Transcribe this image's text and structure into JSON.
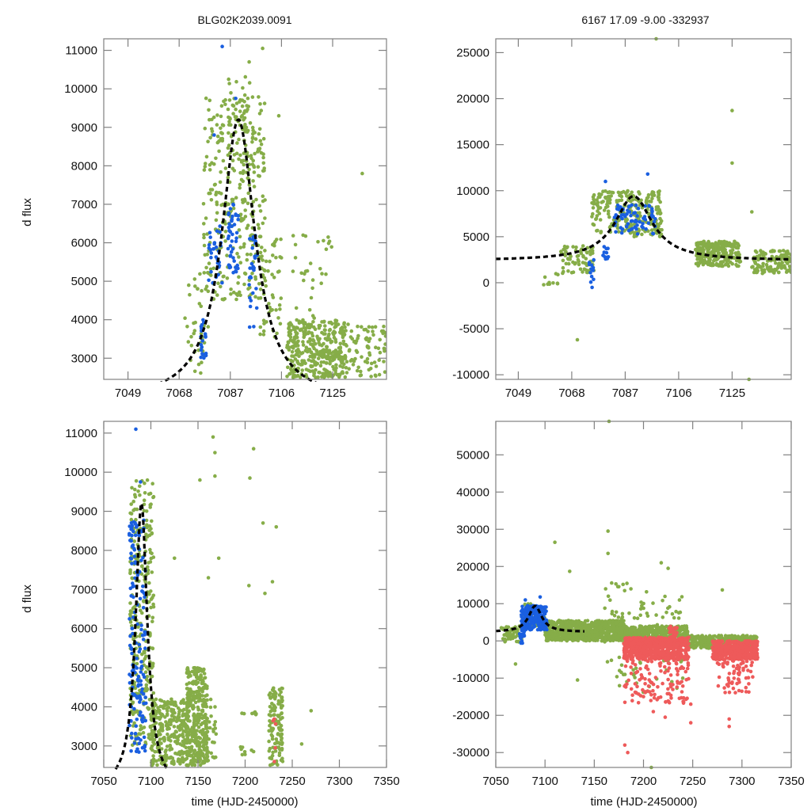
{
  "colors": {
    "green": "#86ad48",
    "blue": "#1a5fe0",
    "red": "#ee5a5a",
    "model": "#000000",
    "frame": "#808080"
  },
  "chart_data": [
    {
      "type": "scatter",
      "panel": "top-left",
      "title": "BLG02K2039.0091",
      "xlabel": "",
      "ylabel": "d flux",
      "xlim": [
        7040,
        7145
      ],
      "ylim": [
        2450,
        11300
      ],
      "xticks": [
        "7049",
        "7068",
        "7087",
        "7106",
        "7125"
      ],
      "xtick_values": [
        7049,
        7068,
        7087,
        7106,
        7125
      ],
      "yticks": [
        "3000",
        "4000",
        "5000",
        "6000",
        "7000",
        "8000",
        "9000",
        "10000",
        "11000"
      ],
      "ytick_values": [
        3000,
        4000,
        5000,
        6000,
        7000,
        8000,
        9000,
        10000,
        11000
      ],
      "grid": false,
      "model": {
        "type": "lorentzian",
        "t0": 7090,
        "width": 7.5,
        "amplitude": 7300,
        "baseline": 1900
      },
      "series": [
        {
          "name": "green",
          "color": "green",
          "clusters": [
            {
              "x": [
                7070,
                7079
              ],
              "y": [
                2600,
                5200
              ],
              "n": 40
            },
            {
              "x": [
                7077,
                7100
              ],
              "y": [
                4500,
                9800
              ],
              "n": 320
            },
            {
              "x": [
                7086,
                7097
              ],
              "y": [
                7500,
                10500
              ],
              "n": 50
            },
            {
              "x": [
                7098,
                7106
              ],
              "y": [
                3500,
                6200
              ],
              "n": 50
            },
            {
              "x": [
                7108,
                7130
              ],
              "y": [
                2500,
                4000
              ],
              "n": 380
            },
            {
              "x": [
                7130,
                7145
              ],
              "y": [
                2500,
                3900
              ],
              "n": 80
            },
            {
              "x": [
                7110,
                7125
              ],
              "y": [
                4000,
                6500
              ],
              "n": 30
            }
          ],
          "points": [
            {
              "x": 7099,
              "y": 11050
            },
            {
              "x": 7105,
              "y": 9300
            },
            {
              "x": 7136,
              "y": 7800
            },
            {
              "x": 7094,
              "y": 10700
            }
          ]
        },
        {
          "name": "blue",
          "color": "blue",
          "clusters": [
            {
              "x": [
                7076,
                7078
              ],
              "y": [
                2800,
                4000
              ],
              "n": 20
            },
            {
              "x": [
                7079,
                7084
              ],
              "y": [
                4800,
                6500
              ],
              "n": 30
            },
            {
              "x": [
                7086,
                7090
              ],
              "y": [
                5200,
                7000
              ],
              "n": 45
            },
            {
              "x": [
                7094,
                7097
              ],
              "y": [
                3800,
                6200
              ],
              "n": 30
            }
          ],
          "points": [
            {
              "x": 7084,
              "y": 11100
            },
            {
              "x": 7089,
              "y": 9750
            },
            {
              "x": 7081,
              "y": 8800
            }
          ]
        }
      ]
    },
    {
      "type": "scatter",
      "panel": "top-right",
      "title": "6167  17.09  -9.00  -332937",
      "xlabel": "",
      "ylabel": "",
      "xlim": [
        7041,
        7146
      ],
      "ylim": [
        -10500,
        26500
      ],
      "xticks": [
        "7049",
        "7068",
        "7087",
        "7106",
        "7125"
      ],
      "xtick_values": [
        7049,
        7068,
        7087,
        7106,
        7125
      ],
      "yticks": [
        "-10000",
        "-5000",
        "0",
        "5000",
        "10000",
        "15000",
        "20000",
        "25000"
      ],
      "ytick_values": [
        -10000,
        -5000,
        0,
        5000,
        10000,
        15000,
        20000,
        25000
      ],
      "grid": false,
      "model": {
        "type": "lorentzian",
        "t0": 7090,
        "width": 8,
        "amplitude": 7000,
        "baseline": 2400
      },
      "series": [
        {
          "name": "green",
          "color": "green",
          "clusters": [
            {
              "x": [
                7058,
                7064
              ],
              "y": [
                -300,
                1000
              ],
              "n": 10
            },
            {
              "x": [
                7064,
                7076
              ],
              "y": [
                1000,
                4000
              ],
              "n": 70
            },
            {
              "x": [
                7075,
                7100
              ],
              "y": [
                5000,
                10000
              ],
              "n": 250
            },
            {
              "x": [
                7112,
                7128
              ],
              "y": [
                1800,
                4500
              ],
              "n": 250
            },
            {
              "x": [
                7132,
                7146
              ],
              "y": [
                1000,
                3500
              ],
              "n": 120
            }
          ],
          "points": [
            {
              "x": 7098,
              "y": 26500
            },
            {
              "x": 7125,
              "y": 18700
            },
            {
              "x": 7125,
              "y": 13000
            },
            {
              "x": 7132,
              "y": 7700
            },
            {
              "x": 7070,
              "y": -6200
            },
            {
              "x": 7131,
              "y": -10500
            }
          ]
        },
        {
          "name": "blue",
          "color": "blue",
          "clusters": [
            {
              "x": [
                7074,
                7076
              ],
              "y": [
                -600,
                2500
              ],
              "n": 12
            },
            {
              "x": [
                7079,
                7081
              ],
              "y": [
                2500,
                4000
              ],
              "n": 12
            },
            {
              "x": [
                7083,
                7098
              ],
              "y": [
                5200,
                8500
              ],
              "n": 70
            }
          ],
          "points": [
            {
              "x": 7080,
              "y": 11000
            },
            {
              "x": 7095,
              "y": 11800
            }
          ]
        }
      ]
    },
    {
      "type": "scatter",
      "panel": "bottom-left",
      "title": "",
      "xlabel": "time (HJD-2450000)",
      "ylabel": "d flux",
      "xlim": [
        7050,
        7350
      ],
      "ylim": [
        2450,
        11300
      ],
      "xticks": [
        "7050",
        "7100",
        "7150",
        "7200",
        "7250",
        "7300",
        "7350"
      ],
      "xtick_values": [
        7050,
        7100,
        7150,
        7200,
        7250,
        7300,
        7350
      ],
      "yticks": [
        "3000",
        "4000",
        "5000",
        "6000",
        "7000",
        "8000",
        "9000",
        "10000",
        "11000"
      ],
      "ytick_values": [
        3000,
        4000,
        5000,
        6000,
        7000,
        8000,
        9000,
        10000,
        11000
      ],
      "grid": false,
      "model": {
        "type": "lorentzian",
        "t0": 7090,
        "width": 7.5,
        "amplitude": 7300,
        "baseline": 1900,
        "x_end": 7145
      },
      "series": [
        {
          "name": "green",
          "color": "green",
          "clusters": [
            {
              "x": [
                7078,
                7103
              ],
              "y": [
                3000,
                9800
              ],
              "n": 300
            },
            {
              "x": [
                7100,
                7140
              ],
              "y": [
                2500,
                4200
              ],
              "n": 300
            },
            {
              "x": [
                7138,
                7160
              ],
              "y": [
                2500,
                5000
              ],
              "n": 350
            },
            {
              "x": [
                7155,
                7170
              ],
              "y": [
                2600,
                4200
              ],
              "n": 40
            },
            {
              "x": [
                7225,
                7240
              ],
              "y": [
                2500,
                4500
              ],
              "n": 120
            },
            {
              "x": [
                7195,
                7215
              ],
              "y": [
                2700,
                3900
              ],
              "n": 15
            }
          ],
          "points": [
            {
              "x": 7166,
              "y": 10900
            },
            {
              "x": 7168,
              "y": 10500
            },
            {
              "x": 7209,
              "y": 10600
            },
            {
              "x": 7168,
              "y": 9900
            },
            {
              "x": 7205,
              "y": 9850
            },
            {
              "x": 7152,
              "y": 9800
            },
            {
              "x": 7219,
              "y": 8700
            },
            {
              "x": 7233,
              "y": 8600
            },
            {
              "x": 7125,
              "y": 7800
            },
            {
              "x": 7172,
              "y": 7800
            },
            {
              "x": 7161,
              "y": 7300
            },
            {
              "x": 7204,
              "y": 7100
            },
            {
              "x": 7221,
              "y": 6900
            },
            {
              "x": 7229,
              "y": 7200
            },
            {
              "x": 7270,
              "y": 3900
            },
            {
              "x": 7260,
              "y": 3050
            }
          ]
        },
        {
          "name": "blue",
          "color": "blue",
          "clusters": [
            {
              "x": [
                7077,
                7095
              ],
              "y": [
                2800,
                8800
              ],
              "n": 160
            }
          ],
          "points": [
            {
              "x": 7084,
              "y": 11100
            },
            {
              "x": 7089,
              "y": 9750
            }
          ]
        },
        {
          "name": "red",
          "color": "red",
          "clusters": [
            {
              "x": [
                7229,
                7233
              ],
              "y": [
                3550,
                3700
              ],
              "n": 4
            }
          ],
          "points": [
            {
              "x": 7232,
              "y": 2950
            },
            {
              "x": 7231,
              "y": 2600
            }
          ]
        }
      ]
    },
    {
      "type": "scatter",
      "panel": "bottom-right",
      "title": "",
      "xlabel": "time (HJD-2450000)",
      "ylabel": "",
      "xlim": [
        7050,
        7350
      ],
      "ylim": [
        -34000,
        59000
      ],
      "xticks": [
        "7050",
        "7100",
        "7150",
        "7200",
        "7250",
        "7300",
        "7350"
      ],
      "xtick_values": [
        7050,
        7100,
        7150,
        7200,
        7250,
        7300,
        7350
      ],
      "yticks": [
        "-30000",
        "-20000",
        "-10000",
        "0",
        "10000",
        "20000",
        "30000",
        "40000",
        "50000"
      ],
      "ytick_values": [
        -30000,
        -20000,
        -10000,
        0,
        10000,
        20000,
        30000,
        40000,
        50000
      ],
      "grid": false,
      "model": {
        "type": "lorentzian",
        "t0": 7090,
        "width": 8,
        "amplitude": 7000,
        "baseline": 2400,
        "x_end": 7140
      },
      "series": [
        {
          "name": "green",
          "color": "green",
          "clusters": [
            {
              "x": [
                7055,
                7078
              ],
              "y": [
                -500,
                4000
              ],
              "n": 60
            },
            {
              "x": [
                7078,
                7100
              ],
              "y": [
                4000,
                10000
              ],
              "n": 80
            },
            {
              "x": [
                7100,
                7180
              ],
              "y": [
                0,
                5500
              ],
              "n": 700
            },
            {
              "x": [
                7180,
                7245
              ],
              "y": [
                -1000,
                4000
              ],
              "n": 450
            },
            {
              "x": [
                7245,
                7315
              ],
              "y": [
                -2000,
                1500
              ],
              "n": 400
            },
            {
              "x": [
                7160,
                7240
              ],
              "y": [
                -15000,
                16000
              ],
              "n": 120
            }
          ],
          "points": [
            {
              "x": 7165,
              "y": 59000
            },
            {
              "x": 7164,
              "y": 29500
            },
            {
              "x": 7110,
              "y": 26500
            },
            {
              "x": 7164,
              "y": 23500
            },
            {
              "x": 7218,
              "y": 21000
            },
            {
              "x": 7225,
              "y": 19500
            },
            {
              "x": 7125,
              "y": 18700
            },
            {
              "x": 7280,
              "y": 13700
            },
            {
              "x": 7070,
              "y": -6200
            },
            {
              "x": 7133,
              "y": -10500
            },
            {
              "x": 7208,
              "y": -34000
            }
          ]
        },
        {
          "name": "blue",
          "color": "blue",
          "clusters": [
            {
              "x": [
                7076,
                7102
              ],
              "y": [
                3000,
                9500
              ],
              "n": 220
            },
            {
              "x": [
                7074,
                7079
              ],
              "y": [
                -600,
                3000
              ],
              "n": 15
            }
          ],
          "points": [
            {
              "x": 7080,
              "y": 11000
            },
            {
              "x": 7095,
              "y": 11800
            }
          ]
        },
        {
          "name": "red",
          "color": "red",
          "clusters": [
            {
              "x": [
                7180,
                7246
              ],
              "y": [
                -5000,
                1000
              ],
              "n": 600
            },
            {
              "x": [
                7270,
                7316
              ],
              "y": [
                -5000,
                0
              ],
              "n": 400
            },
            {
              "x": [
                7180,
                7246
              ],
              "y": [
                -17000,
                -5000
              ],
              "n": 120
            },
            {
              "x": [
                7275,
                7312
              ],
              "y": [
                -14000,
                -5000
              ],
              "n": 60
            },
            {
              "x": [
                7226,
                7234
              ],
              "y": [
                0,
                4000
              ],
              "n": 40
            }
          ],
          "points": [
            {
              "x": 7181,
              "y": -28000
            },
            {
              "x": 7184,
              "y": -30000
            },
            {
              "x": 7210,
              "y": -19000
            },
            {
              "x": 7222,
              "y": -20500
            },
            {
              "x": 7248,
              "y": -22000
            },
            {
              "x": 7287,
              "y": -23000
            },
            {
              "x": 7287,
              "y": -21000
            },
            {
              "x": 7248,
              "y": -17000
            }
          ]
        }
      ]
    }
  ]
}
